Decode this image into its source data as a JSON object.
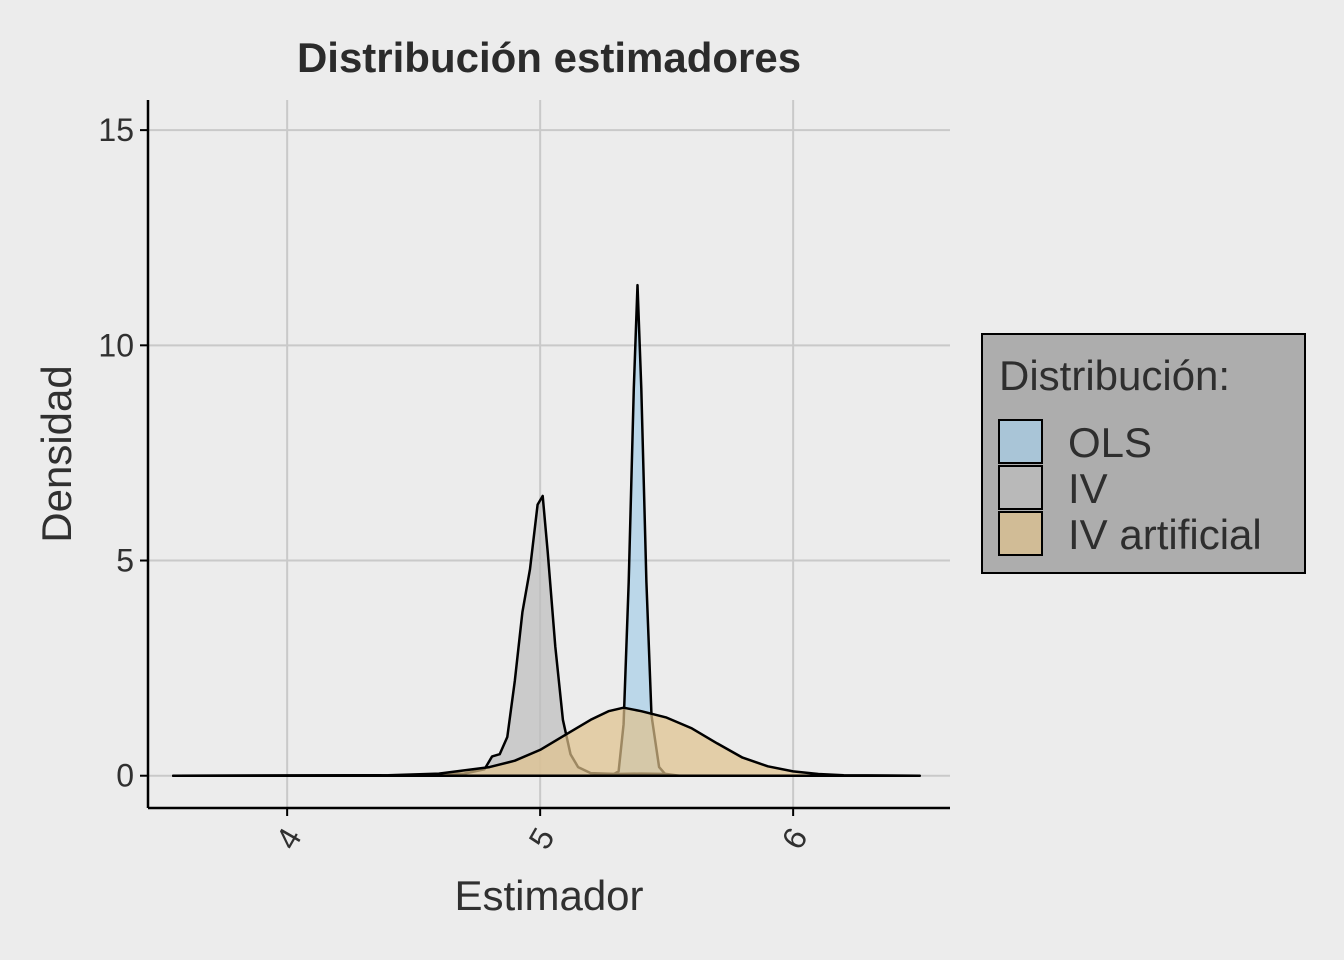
{
  "chart_data": {
    "type": "area",
    "title": "Distribución estimadores",
    "xlabel": "Estimador",
    "ylabel": "Densidad",
    "xlim": [
      3.45,
      6.62
    ],
    "ylim": [
      -0.75,
      15.7
    ],
    "x_ticks": [
      4,
      5,
      6
    ],
    "y_ticks": [
      0,
      5,
      10,
      15
    ],
    "grid": true,
    "legend": {
      "title": "Distribución:",
      "placement": "right",
      "entries": [
        "OLS",
        "IV",
        "IV artificial"
      ]
    },
    "series": [
      {
        "name": "OLS",
        "color": "#a6cfe8",
        "points": [
          [
            3.55,
            0
          ],
          [
            5.28,
            0
          ],
          [
            5.31,
            0.1
          ],
          [
            5.33,
            1.2
          ],
          [
            5.35,
            4.5
          ],
          [
            5.37,
            9.0
          ],
          [
            5.385,
            11.4
          ],
          [
            5.4,
            9.0
          ],
          [
            5.42,
            4.5
          ],
          [
            5.44,
            1.4
          ],
          [
            5.47,
            0.2
          ],
          [
            5.5,
            0
          ],
          [
            6.5,
            0
          ]
        ]
      },
      {
        "name": "IV",
        "color": "#bdbdbd",
        "points": [
          [
            3.55,
            0
          ],
          [
            4.5,
            0.01
          ],
          [
            4.7,
            0.05
          ],
          [
            4.78,
            0.15
          ],
          [
            4.81,
            0.45
          ],
          [
            4.84,
            0.5
          ],
          [
            4.87,
            0.9
          ],
          [
            4.9,
            2.2
          ],
          [
            4.93,
            3.8
          ],
          [
            4.96,
            4.8
          ],
          [
            4.99,
            6.3
          ],
          [
            5.01,
            6.5
          ],
          [
            5.03,
            5.2
          ],
          [
            5.06,
            3.0
          ],
          [
            5.09,
            1.3
          ],
          [
            5.12,
            0.5
          ],
          [
            5.15,
            0.2
          ],
          [
            5.2,
            0.06
          ],
          [
            5.3,
            0.04
          ],
          [
            5.4,
            0.05
          ],
          [
            5.5,
            0.04
          ],
          [
            5.55,
            0
          ],
          [
            6.5,
            0
          ]
        ]
      },
      {
        "name": "IV artificial",
        "color": "#e0c28c",
        "points": [
          [
            3.55,
            0
          ],
          [
            4.4,
            0.01
          ],
          [
            4.6,
            0.05
          ],
          [
            4.8,
            0.2
          ],
          [
            4.9,
            0.35
          ],
          [
            5.0,
            0.6
          ],
          [
            5.1,
            0.95
          ],
          [
            5.2,
            1.3
          ],
          [
            5.27,
            1.5
          ],
          [
            5.33,
            1.58
          ],
          [
            5.4,
            1.5
          ],
          [
            5.5,
            1.35
          ],
          [
            5.6,
            1.1
          ],
          [
            5.7,
            0.75
          ],
          [
            5.8,
            0.42
          ],
          [
            5.9,
            0.22
          ],
          [
            6.0,
            0.1
          ],
          [
            6.1,
            0.04
          ],
          [
            6.2,
            0.01
          ],
          [
            6.5,
            0
          ]
        ]
      }
    ]
  }
}
